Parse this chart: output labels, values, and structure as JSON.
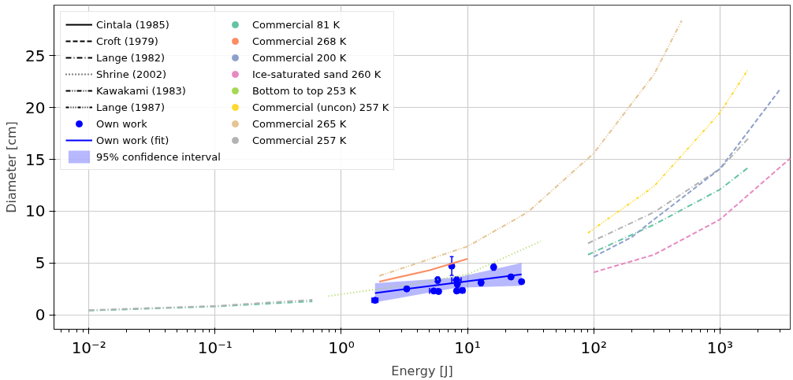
{
  "chart_data": {
    "type": "line",
    "xlabel": "Energy [J]",
    "ylabel": "Diameter [cm]",
    "log": "x",
    "grid": true,
    "legend": "top left",
    "xlim": [
      0.0053,
      3600
    ],
    "ylim": [
      -1.4,
      29.9
    ],
    "xticks": [
      {
        "value": 0.01,
        "label": "10⁻²"
      },
      {
        "value": 0.1,
        "label": "10⁻¹"
      },
      {
        "value": 1,
        "label": "10⁰"
      },
      {
        "value": 10,
        "label": "10¹"
      },
      {
        "value": 100,
        "label": "10²"
      },
      {
        "value": 1000,
        "label": "10³"
      }
    ],
    "yticks": [
      0,
      5,
      10,
      15,
      20,
      25
    ],
    "series": [
      {
        "name": "Cintala (1985)",
        "color": "#000000",
        "line_style": "solid"
      },
      {
        "name": "Croft (1979)",
        "color": "#000000",
        "line_style": "dashed"
      },
      {
        "name": "Lange (1982)",
        "color": "#000000",
        "line_style": "dashdot"
      },
      {
        "name": "Shrine (2002)",
        "color": "#000000",
        "line_style": "dotted"
      },
      {
        "name": "Kawakami (1983)",
        "color": "#000000",
        "line_style": "dashdotdot"
      },
      {
        "name": "Lange (1987)",
        "color": "#000000",
        "line_style": "dashdotdotdot"
      },
      {
        "name": "Own work",
        "type": "scatter",
        "marker": "circle",
        "color": "#0000ff",
        "x": [
          1.85,
          3.3,
          5.4,
          5.9,
          5.8,
          7.5,
          8.2,
          8.3,
          8.2,
          9.1,
          12.8,
          16.1,
          22.1,
          26.8
        ],
        "values": [
          1.4,
          2.5,
          2.3,
          2.25,
          3.35,
          4.7,
          3.35,
          2.95,
          2.3,
          2.35,
          3.1,
          4.6,
          3.65,
          3.2
        ],
        "errors": [
          null,
          null,
          null,
          null,
          0.3,
          0.9,
          0.3,
          0.3,
          null,
          null,
          0.3,
          0.3,
          null,
          null
        ],
        "xerrors": [
          0.1,
          null,
          0.4,
          null,
          null,
          null,
          0.7,
          null,
          null,
          0.4,
          null,
          null,
          null,
          null
        ]
      },
      {
        "name": "Own work (fit)",
        "color": "#0000ff",
        "line_style": "solid",
        "x": [
          1.85,
          8.2,
          26.8
        ],
        "values": [
          2.1,
          3.1,
          3.9
        ],
        "lower": [
          1.2,
          2.6,
          2.8
        ],
        "upper": [
          3.05,
          3.6,
          5.0
        ]
      },
      {
        "name": "95% confidence interval",
        "type": "area",
        "color": "#0000ff"
      },
      {
        "name": "Commercial 81 K",
        "type": "scatter",
        "marker": "circle",
        "color": "#66c2a5"
      },
      {
        "name": "Commercial 268 K",
        "type": "scatter",
        "marker": "circle",
        "color": "#fc8d62"
      },
      {
        "name": "Commercial 200 K",
        "type": "scatter",
        "marker": "circle",
        "color": "#8da0cb"
      },
      {
        "name": "Ice-saturated sand 260 K",
        "type": "scatter",
        "marker": "circle",
        "color": "#e78ac3"
      },
      {
        "name": "Bottom to top 253 K",
        "type": "scatter",
        "marker": "circle",
        "color": "#a6d854"
      },
      {
        "name": "Commercial (uncon) 257 K",
        "type": "scatter",
        "marker": "circle",
        "color": "#ffd92f"
      },
      {
        "name": "Commercial 265 K",
        "type": "scatter",
        "marker": "circle",
        "color": "#e5c494"
      },
      {
        "name": "Commercial 257 K",
        "type": "scatter",
        "marker": "circle",
        "color": "#b3b3b3"
      },
      {
        "color": "#66c2a5",
        "line_style": "dashdot",
        "x": [
          0.01,
          0.1,
          0.59
        ],
        "values": [
          0.4,
          0.8,
          1.3
        ]
      },
      {
        "color": "#b3b3b3",
        "line_style": "dashdot",
        "x": [
          0.01,
          0.1,
          0.59
        ],
        "values": [
          0.45,
          0.85,
          1.45
        ]
      },
      {
        "color": "#a6d854",
        "line_style": "dotted",
        "x": [
          0.79,
          3,
          10,
          38
        ],
        "values": [
          1.8,
          2.8,
          3.9,
          7.1
        ]
      },
      {
        "color": "#e5c494",
        "line_style": "dashdotdot",
        "x": [
          2,
          10,
          30,
          100,
          300,
          497
        ],
        "values": [
          3.75,
          6.6,
          9.9,
          15.6,
          23.2,
          28.4
        ]
      },
      {
        "color": "#fc8d62",
        "line_style": "solid",
        "x": [
          2,
          5,
          10
        ],
        "values": [
          3.2,
          4.3,
          5.4
        ]
      },
      {
        "color": "#ffd92f",
        "line_style": "dashdotdotdot",
        "x": [
          90,
          300,
          1000,
          1670
        ],
        "values": [
          7.9,
          12.4,
          19.5,
          23.7
        ]
      },
      {
        "color": "#b3b3b3",
        "line_style": "dashdot",
        "x": [
          90,
          300,
          1000,
          1670
        ],
        "values": [
          6.9,
          9.9,
          14.1,
          17.0
        ]
      },
      {
        "color": "#66c2a5",
        "line_style": "dashdot",
        "x": [
          90,
          300,
          1000,
          1670
        ],
        "values": [
          5.8,
          8.7,
          12.1,
          14.2
        ]
      },
      {
        "color": "#8da0cb",
        "line_style": "dashed",
        "x": [
          100,
          200,
          300,
          1000,
          2960
        ],
        "values": [
          5.6,
          7.5,
          9.2,
          14.1,
          21.7
        ]
      },
      {
        "color": "#e78ac3",
        "line_style": "dashed",
        "x": [
          100,
          300,
          1000,
          3600
        ],
        "values": [
          4.1,
          5.8,
          9.2,
          15.1
        ]
      }
    ]
  }
}
